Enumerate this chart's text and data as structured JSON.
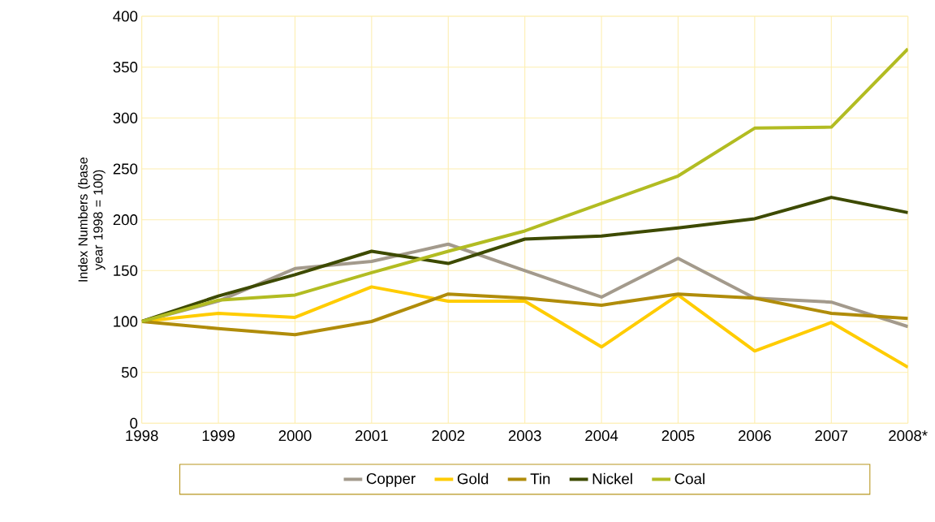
{
  "chart_data": {
    "type": "line",
    "ylabel": "Index Numbers (base year 1998 = 100)",
    "categories": [
      "1998",
      "1999",
      "2000",
      "2001",
      "2002",
      "2003",
      "2004",
      "2005",
      "2006",
      "2007",
      "2008*"
    ],
    "series": [
      {
        "name": "Copper",
        "color": "#a39a8c",
        "values": [
          100,
          120,
          152,
          159,
          176,
          150,
          124,
          162,
          123,
          119,
          95
        ]
      },
      {
        "name": "Gold",
        "color": "#ffcc00",
        "values": [
          100,
          108,
          104,
          134,
          120,
          120,
          75,
          126,
          71,
          99,
          55
        ]
      },
      {
        "name": "Tin",
        "color": "#b08c0a",
        "values": [
          100,
          93,
          87,
          100,
          127,
          123,
          116,
          127,
          123,
          108,
          103
        ]
      },
      {
        "name": "Nickel",
        "color": "#3d4a00",
        "values": [
          100,
          125,
          146,
          169,
          157,
          181,
          184,
          192,
          201,
          222,
          207
        ]
      },
      {
        "name": "Coal",
        "color": "#b2bc22",
        "values": [
          100,
          121,
          126,
          148,
          169,
          189,
          216,
          243,
          290,
          291,
          368
        ]
      }
    ],
    "ylim": [
      0,
      400
    ],
    "yticks": [
      0,
      50,
      100,
      150,
      200,
      250,
      300,
      350,
      400
    ],
    "grid": true,
    "legend": "bottom",
    "marker": "none",
    "line_style": "solid"
  }
}
